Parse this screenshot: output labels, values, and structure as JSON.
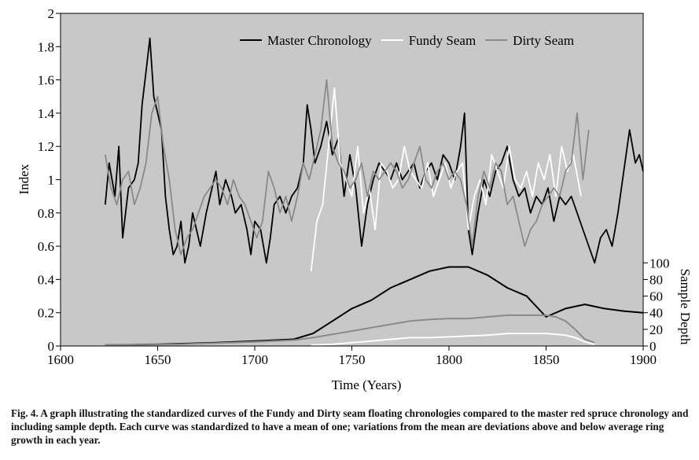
{
  "chart_data": {
    "type": "line",
    "xlabel": "Time (Years)",
    "ylabel": "Index",
    "y2label": "Sample Depth",
    "xlim": [
      1600,
      1900
    ],
    "xticks": [
      1600,
      1650,
      1700,
      1750,
      1800,
      1850,
      1900
    ],
    "ylim": [
      0,
      2
    ],
    "yticks": [
      0,
      0.2,
      0.4,
      0.6,
      0.8,
      1,
      1.2,
      1.4,
      1.6,
      1.8,
      2
    ],
    "y2lim": [
      0,
      400
    ],
    "y2ticks": [
      0,
      20,
      40,
      60,
      80,
      100
    ],
    "legend": "upper right",
    "background": "#c8c8c8",
    "series": [
      {
        "name": "Master Chronology",
        "color": "#000000",
        "x": [
          1623,
          1625,
          1628,
          1630,
          1632,
          1635,
          1638,
          1640,
          1642,
          1644,
          1646,
          1648,
          1650,
          1652,
          1654,
          1656,
          1658,
          1660,
          1662,
          1664,
          1666,
          1668,
          1670,
          1672,
          1675,
          1678,
          1680,
          1682,
          1685,
          1688,
          1690,
          1693,
          1696,
          1698,
          1700,
          1703,
          1706,
          1708,
          1710,
          1713,
          1716,
          1719,
          1722,
          1725,
          1727,
          1729,
          1731,
          1734,
          1737,
          1740,
          1743,
          1746,
          1749,
          1752,
          1755,
          1758,
          1761,
          1764,
          1767,
          1770,
          1773,
          1776,
          1779,
          1782,
          1785,
          1788,
          1791,
          1794,
          1797,
          1800,
          1803,
          1806,
          1808,
          1810,
          1812,
          1815,
          1818,
          1821,
          1824,
          1827,
          1830,
          1833,
          1836,
          1839,
          1842,
          1845,
          1848,
          1851,
          1854,
          1857,
          1860,
          1863,
          1866,
          1869,
          1872,
          1875,
          1878,
          1881,
          1884,
          1887,
          1890,
          1893,
          1896,
          1898,
          1900
        ],
        "values": [
          0.85,
          1.1,
          0.9,
          1.2,
          0.65,
          0.95,
          1.0,
          1.1,
          1.45,
          1.65,
          1.85,
          1.5,
          1.4,
          1.3,
          0.9,
          0.7,
          0.55,
          0.6,
          0.75,
          0.5,
          0.6,
          0.8,
          0.7,
          0.6,
          0.8,
          0.95,
          1.05,
          0.85,
          1.0,
          0.9,
          0.8,
          0.85,
          0.7,
          0.55,
          0.75,
          0.7,
          0.5,
          0.65,
          0.85,
          0.9,
          0.8,
          0.9,
          0.95,
          1.1,
          1.45,
          1.3,
          1.1,
          1.2,
          1.35,
          1.15,
          1.25,
          0.9,
          1.15,
          0.95,
          0.6,
          0.85,
          1.0,
          1.1,
          1.05,
          1.0,
          1.1,
          1.0,
          1.05,
          1.1,
          0.95,
          1.05,
          1.1,
          1.0,
          1.15,
          1.1,
          1.0,
          1.2,
          1.4,
          0.7,
          0.55,
          0.8,
          1.0,
          0.9,
          1.05,
          1.1,
          1.2,
          1.0,
          0.9,
          0.95,
          0.8,
          0.9,
          0.85,
          0.95,
          0.75,
          0.9,
          0.85,
          0.9,
          0.8,
          0.7,
          0.6,
          0.5,
          0.65,
          0.7,
          0.6,
          0.8,
          1.05,
          1.3,
          1.1,
          1.15,
          1.05
        ]
      },
      {
        "name": "Fundy Seam",
        "color": "#ffffff",
        "x": [
          1729,
          1732,
          1735,
          1738,
          1741,
          1744,
          1747,
          1750,
          1753,
          1756,
          1759,
          1762,
          1765,
          1768,
          1771,
          1774,
          1777,
          1780,
          1783,
          1786,
          1789,
          1792,
          1795,
          1798,
          1801,
          1804,
          1807,
          1810,
          1813,
          1816,
          1819,
          1822,
          1825,
          1828,
          1831,
          1834,
          1837,
          1840,
          1843,
          1846,
          1849,
          1852,
          1855,
          1858,
          1861,
          1864,
          1868
        ],
        "values": [
          0.45,
          0.75,
          0.85,
          1.2,
          1.55,
          1.1,
          1.0,
          0.9,
          1.2,
          0.8,
          0.95,
          0.7,
          1.1,
          1.05,
          0.95,
          1.0,
          1.2,
          1.05,
          1.0,
          0.95,
          1.1,
          0.9,
          1.0,
          1.1,
          0.95,
          1.05,
          1.1,
          0.7,
          0.9,
          1.0,
          0.85,
          1.15,
          1.05,
          0.95,
          1.2,
          1.0,
          0.95,
          1.05,
          0.9,
          1.1,
          1.0,
          1.15,
          0.9,
          1.2,
          1.05,
          1.15,
          0.9
        ]
      },
      {
        "name": "Dirty Seam",
        "color": "#8a8a8a",
        "x": [
          1623,
          1626,
          1629,
          1632,
          1635,
          1638,
          1641,
          1644,
          1647,
          1650,
          1653,
          1656,
          1659,
          1662,
          1665,
          1668,
          1671,
          1674,
          1677,
          1680,
          1683,
          1686,
          1689,
          1692,
          1695,
          1698,
          1701,
          1704,
          1707,
          1710,
          1713,
          1716,
          1719,
          1722,
          1725,
          1728,
          1731,
          1734,
          1737,
          1740,
          1743,
          1746,
          1749,
          1752,
          1755,
          1758,
          1761,
          1764,
          1767,
          1770,
          1773,
          1776,
          1779,
          1782,
          1785,
          1788,
          1791,
          1794,
          1797,
          1800,
          1803,
          1806,
          1809,
          1812,
          1815,
          1818,
          1821,
          1824,
          1827,
          1830,
          1833,
          1836,
          1839,
          1842,
          1845,
          1848,
          1851,
          1854,
          1857,
          1860,
          1863,
          1866,
          1869,
          1872
        ],
        "values": [
          1.15,
          0.95,
          0.85,
          1.0,
          1.05,
          0.85,
          0.95,
          1.1,
          1.4,
          1.5,
          1.2,
          1.0,
          0.7,
          0.55,
          0.65,
          0.7,
          0.8,
          0.9,
          0.95,
          1.0,
          0.95,
          0.85,
          1.0,
          0.9,
          0.85,
          0.75,
          0.65,
          0.75,
          1.05,
          0.95,
          0.8,
          0.9,
          0.75,
          0.9,
          1.1,
          1.0,
          1.15,
          1.3,
          1.6,
          1.2,
          1.1,
          1.05,
          0.95,
          1.0,
          1.1,
          0.9,
          1.05,
          1.0,
          1.05,
          1.1,
          1.05,
          0.95,
          1.0,
          1.1,
          1.2,
          1.0,
          0.95,
          1.05,
          1.1,
          1.0,
          1.05,
          1.0,
          0.85,
          0.6,
          0.9,
          1.05,
          0.95,
          1.1,
          1.05,
          0.85,
          0.9,
          0.75,
          0.6,
          0.7,
          0.75,
          0.85,
          0.9,
          0.95,
          0.9,
          1.05,
          1.1,
          1.4,
          1.0,
          1.3
        ]
      },
      {
        "axis": "y2",
        "color": "#000000",
        "x": [
          1623,
          1650,
          1680,
          1700,
          1720,
          1730,
          1740,
          1750,
          1760,
          1770,
          1780,
          1790,
          1800,
          1810,
          1820,
          1830,
          1840,
          1850,
          1860,
          1870,
          1880,
          1890,
          1900
        ],
        "values": [
          1,
          2,
          4,
          6,
          8,
          15,
          30,
          45,
          55,
          70,
          80,
          90,
          95,
          95,
          85,
          70,
          60,
          35,
          45,
          50,
          45,
          42,
          40
        ]
      },
      {
        "axis": "y2",
        "color": "#ffffff",
        "x": [
          1729,
          1740,
          1750,
          1760,
          1770,
          1780,
          1790,
          1800,
          1810,
          1820,
          1830,
          1840,
          1850,
          1860,
          1865,
          1870,
          1875
        ],
        "values": [
          1,
          2,
          4,
          6,
          8,
          10,
          10,
          11,
          12,
          13,
          15,
          15,
          15,
          13,
          10,
          5,
          2
        ]
      },
      {
        "axis": "y2",
        "color": "#8a8a8a",
        "x": [
          1623,
          1660,
          1700,
          1720,
          1730,
          1740,
          1750,
          1760,
          1770,
          1780,
          1790,
          1800,
          1810,
          1820,
          1830,
          1840,
          1850,
          1855,
          1860,
          1865,
          1870,
          1875
        ],
        "values": [
          1,
          2,
          5,
          7,
          10,
          14,
          18,
          22,
          26,
          30,
          32,
          33,
          33,
          35,
          37,
          37,
          37,
          35,
          30,
          20,
          8,
          4
        ]
      }
    ]
  },
  "caption": "Fig. 4. A graph illustrating the standardized curves of the Fundy and Dirty seam floating chronologies compared to the master red spruce chronology and including sample depth. Each curve was standardized to have a mean of one; variations from the mean are deviations above and below average ring growth in each year."
}
